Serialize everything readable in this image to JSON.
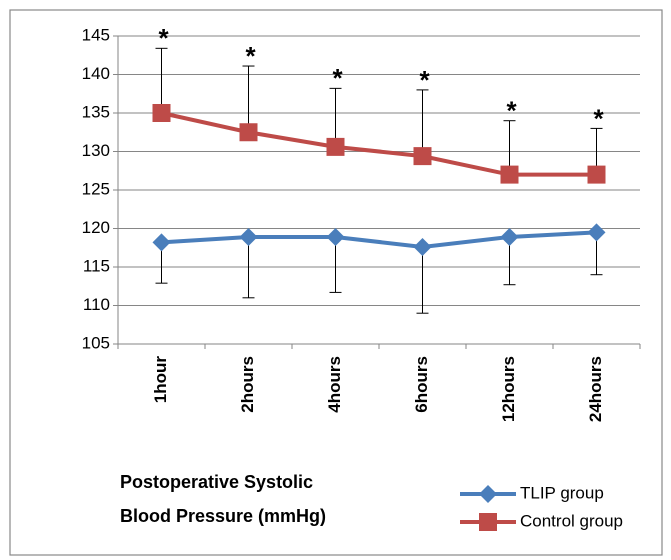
{
  "chart_data": {
    "type": "line",
    "title_lines": [
      "Postoperative Systolic",
      "Blood Pressure  (mmHg)"
    ],
    "categories": [
      "1hour",
      "2hours",
      "4hours",
      "6hours",
      "12hours",
      "24hours"
    ],
    "series": [
      {
        "name": "TLIP group",
        "color": "#4a7ebb",
        "marker": "diamond",
        "values": [
          118.2,
          118.9,
          118.9,
          117.6,
          118.9,
          119.5
        ],
        "error": [
          5.3,
          7.9,
          7.2,
          8.6,
          6.2,
          5.5
        ],
        "error_direction": "down"
      },
      {
        "name": "Control group",
        "color": "#be4b48",
        "marker": "square",
        "values": [
          135,
          132.5,
          130.6,
          129.4,
          127,
          127
        ],
        "error": [
          8.4,
          8.6,
          7.6,
          8.6,
          7,
          6
        ],
        "error_direction": "up",
        "annotations": [
          "*",
          "*",
          "*",
          "*",
          "*",
          "*"
        ]
      }
    ],
    "ylim": [
      105,
      145
    ],
    "yticks": [
      105,
      110,
      115,
      120,
      125,
      130,
      135,
      140,
      145
    ],
    "grid": true
  }
}
